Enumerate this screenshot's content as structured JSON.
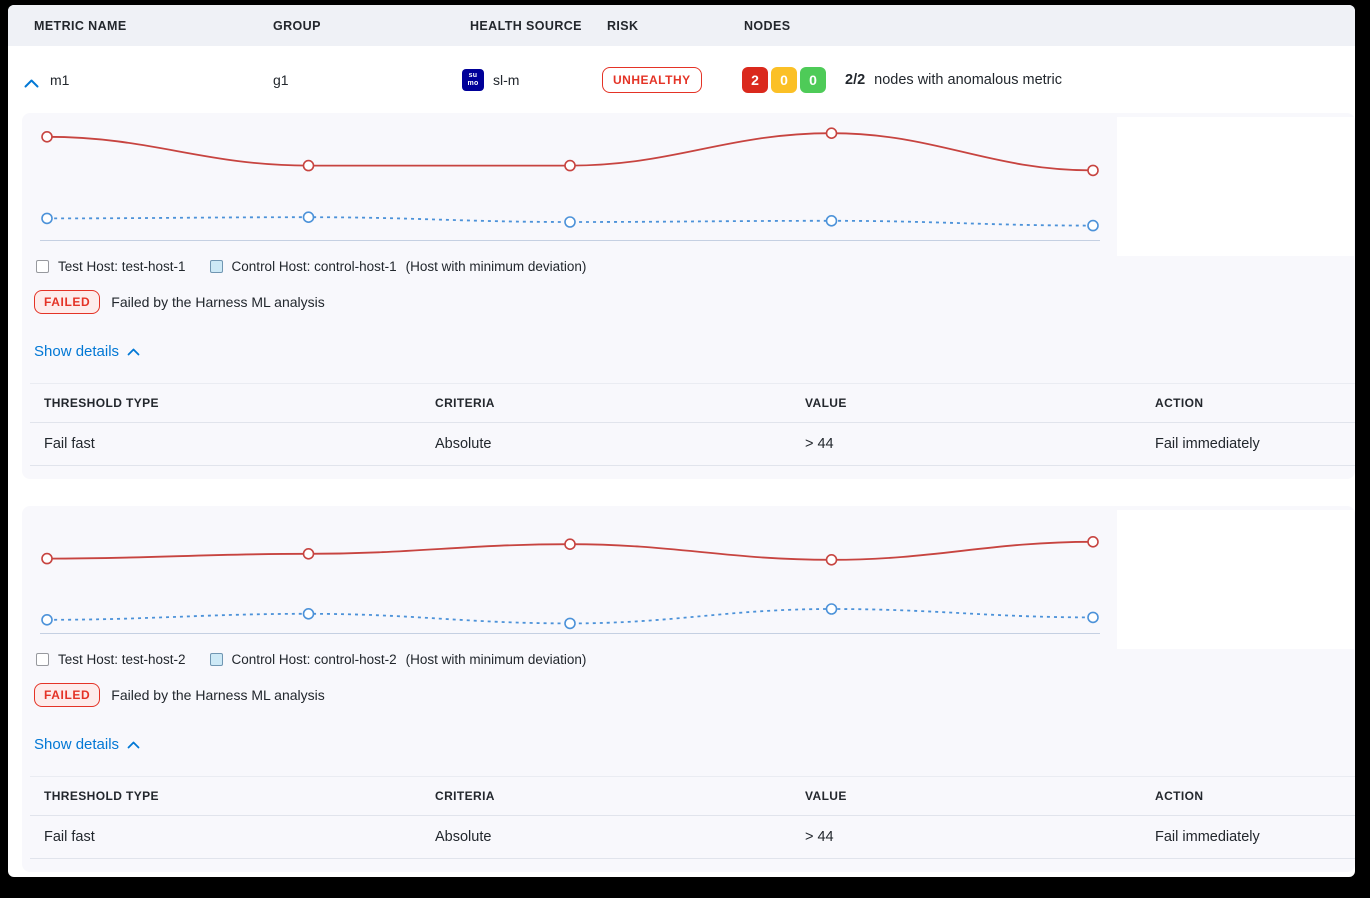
{
  "colors": {
    "test_series_red": "#c74440",
    "control_series_blue": "#4c92d9",
    "risk_red": "#e43326",
    "node_red": "#da291d",
    "node_yellow": "#fbc026",
    "node_green": "#4ecb58",
    "link_blue": "#0278d5",
    "section_bg": "#f8f8fc",
    "header_bg": "#eff1f6"
  },
  "header": {
    "columns": [
      "METRIC NAME",
      "GROUP",
      "HEALTH SOURCE",
      "RISK",
      "NODES"
    ]
  },
  "metric_row": {
    "name": "m1",
    "group": "g1",
    "health_source": "sl-m",
    "health_source_icon": {
      "line1": "su",
      "line2": "mo"
    },
    "risk": "UNHEALTHY",
    "nodes": {
      "anomalous": "2",
      "warning": "0",
      "healthy": "0",
      "ratio": "2/2",
      "summary": "nodes with anomalous metric"
    }
  },
  "hosts": [
    {
      "test_label": "Test Host: test-host-1",
      "control_label": "Control Host: control-host-1",
      "deviation_note": "(Host with minimum deviation)",
      "status": "FAILED",
      "status_message": "Failed by the Harness ML analysis",
      "details_toggle": "Show details",
      "table": {
        "headers": [
          "THRESHOLD TYPE",
          "CRITERIA",
          "VALUE",
          "ACTION"
        ],
        "row": {
          "threshold_type": "Fail fast",
          "criteria": "Absolute",
          "value": "> 44",
          "action": "Fail immediately"
        }
      }
    },
    {
      "test_label": "Test Host: test-host-2",
      "control_label": "Control Host: control-host-2",
      "deviation_note": "(Host with minimum deviation)",
      "status": "FAILED",
      "status_message": "Failed by the Harness ML analysis",
      "details_toggle": "Show details",
      "table": {
        "headers": [
          "THRESHOLD TYPE",
          "CRITERIA",
          "VALUE",
          "ACTION"
        ],
        "row": {
          "threshold_type": "Fail fast",
          "criteria": "Absolute",
          "value": "> 44",
          "action": "Fail immediately"
        }
      }
    }
  ],
  "chart_data": [
    {
      "type": "line",
      "x": [
        0,
        1,
        2,
        3,
        4
      ],
      "ylim": [
        0,
        100
      ],
      "grid": false,
      "legend_position": "bottom",
      "series": [
        {
          "name": "test-host-1",
          "color": "#c74440",
          "style": "solid",
          "values": [
            86,
            62,
            62,
            89,
            58
          ]
        },
        {
          "name": "control-host-1",
          "color": "#4c92d9",
          "style": "dashed",
          "values": [
            18,
            19,
            15,
            16,
            12
          ]
        }
      ]
    },
    {
      "type": "line",
      "x": [
        0,
        1,
        2,
        3,
        4
      ],
      "ylim": [
        0,
        100
      ],
      "grid": false,
      "legend_position": "bottom",
      "series": [
        {
          "name": "test-host-2",
          "color": "#c74440",
          "style": "solid",
          "values": [
            62,
            66,
            74,
            61,
            76
          ]
        },
        {
          "name": "control-host-2",
          "color": "#4c92d9",
          "style": "dashed",
          "values": [
            11,
            16,
            8,
            20,
            13
          ]
        }
      ]
    }
  ]
}
